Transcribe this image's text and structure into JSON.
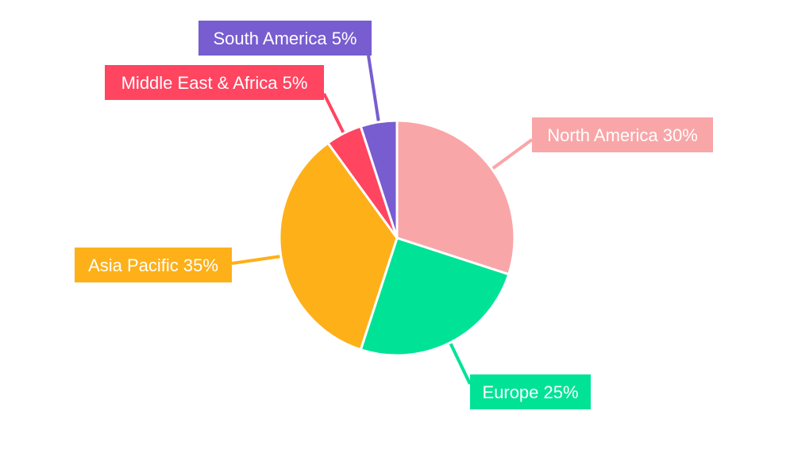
{
  "chart_data": {
    "type": "pie",
    "title": "",
    "categories": [
      "North America",
      "Europe",
      "Asia Pacific",
      "Middle East & Africa",
      "South America"
    ],
    "values": [
      30,
      25,
      35,
      5,
      5
    ],
    "labels": [
      "North America 30%",
      "Europe 25%",
      "Asia Pacific 35%",
      "Middle East & Africa 5%",
      "South America 5%"
    ],
    "colors": [
      "#F9A6A8",
      "#00E396",
      "#FEB019",
      "#FF4560",
      "#775DD0"
    ],
    "start_angle": "top, clockwise",
    "legend": "none"
  }
}
